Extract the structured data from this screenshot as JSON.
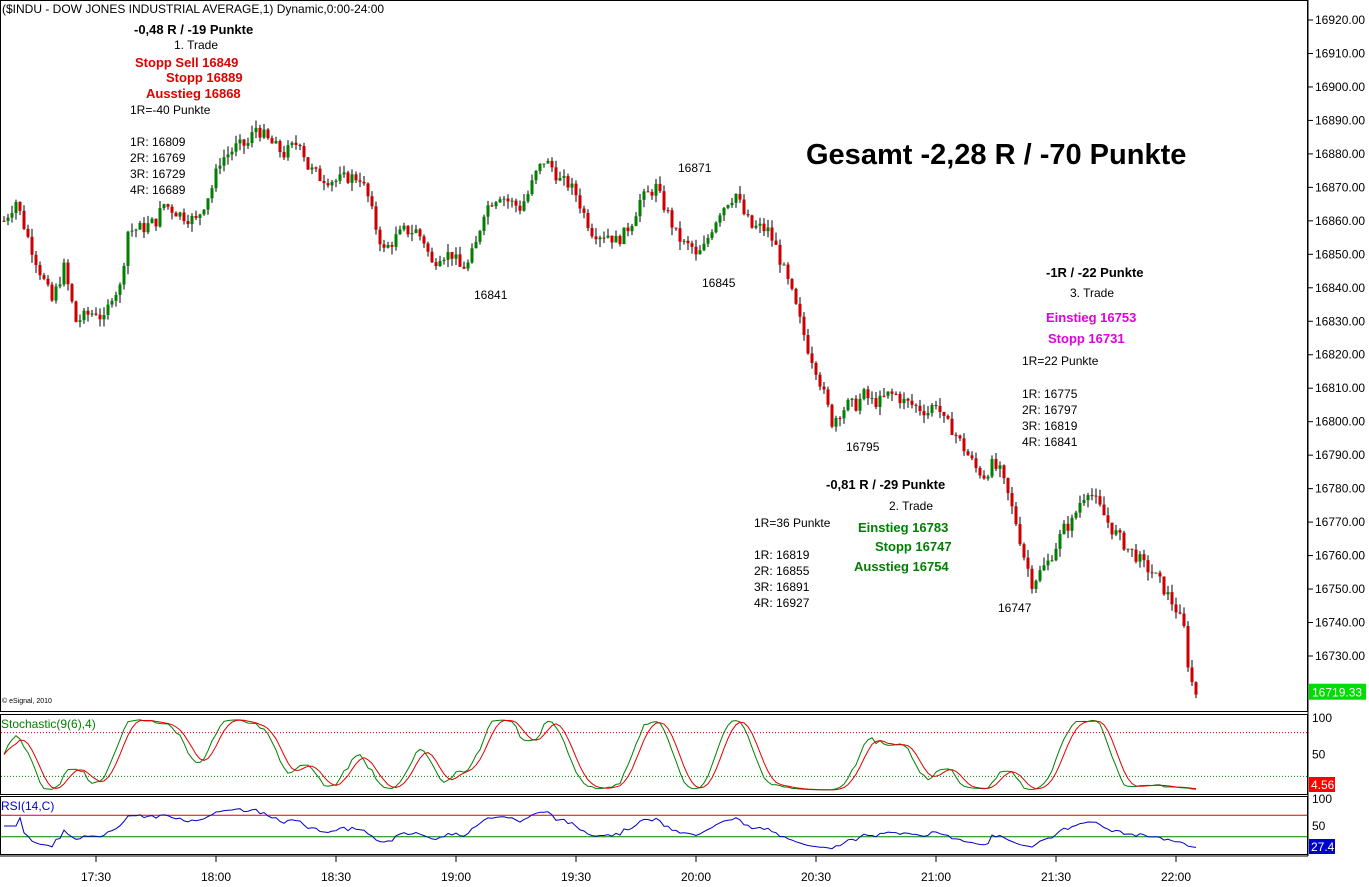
{
  "chart_data": {
    "type": "candlestick",
    "title": "($INDU - DOW JONES INDUSTRIAL AVERAGE,1) Dynamic,0:00-24:00",
    "watermark": "© eSignal, 2010",
    "headline": "Gesamt -2,28 R / -70 Punkte",
    "price_axis": {
      "range": [
        16715,
        16925
      ],
      "ticks": [
        "16920.00",
        "16910.00",
        "16900.00",
        "16890.00",
        "16880.00",
        "16870.00",
        "16860.00",
        "16850.00",
        "16840.00",
        "16830.00",
        "16820.00",
        "16810.00",
        "16800.00",
        "16790.00",
        "16780.00",
        "16770.00",
        "16760.00",
        "16750.00",
        "16740.00",
        "16730.00"
      ],
      "last_price_label": "16719.33",
      "last_price": 16719.33
    },
    "time_axis": {
      "range_minutes": [
        1027,
        1325
      ],
      "ticks": [
        {
          "label": "17:30",
          "minute": 1050
        },
        {
          "label": "18:00",
          "minute": 1080
        },
        {
          "label": "18:30",
          "minute": 1110
        },
        {
          "label": "19:00",
          "minute": 1140
        },
        {
          "label": "19:30",
          "minute": 1170
        },
        {
          "label": "20:00",
          "minute": 1200
        },
        {
          "label": "20:30",
          "minute": 1230
        },
        {
          "label": "21:00",
          "minute": 1260
        },
        {
          "label": "21:30",
          "minute": 1290
        },
        {
          "label": "22:00",
          "minute": 1320
        }
      ]
    },
    "price_path": [
      [
        1027,
        16860
      ],
      [
        1030,
        16866
      ],
      [
        1033,
        16855
      ],
      [
        1036,
        16845
      ],
      [
        1039,
        16836
      ],
      [
        1042,
        16846
      ],
      [
        1045,
        16830
      ],
      [
        1048,
        16832
      ],
      [
        1050,
        16833
      ],
      [
        1052,
        16830
      ],
      [
        1054,
        16838
      ],
      [
        1056,
        16840
      ],
      [
        1058,
        16857
      ],
      [
        1062,
        16858
      ],
      [
        1065,
        16860
      ],
      [
        1067,
        16865
      ],
      [
        1071,
        16862
      ],
      [
        1075,
        16860
      ],
      [
        1079,
        16870
      ],
      [
        1081,
        16878
      ],
      [
        1085,
        16882
      ],
      [
        1088,
        16883
      ],
      [
        1090,
        16888
      ],
      [
        1093,
        16884
      ],
      [
        1097,
        16880
      ],
      [
        1101,
        16884
      ],
      [
        1103,
        16876
      ],
      [
        1106,
        16873
      ],
      [
        1110,
        16872
      ],
      [
        1113,
        16873
      ],
      [
        1116,
        16873
      ],
      [
        1118,
        16867
      ],
      [
        1120,
        16858
      ],
      [
        1122,
        16851
      ],
      [
        1125,
        16855
      ],
      [
        1127,
        16857
      ],
      [
        1130,
        16857
      ],
      [
        1132,
        16854
      ],
      [
        1134,
        16847
      ],
      [
        1136,
        16850
      ],
      [
        1138,
        16850
      ],
      [
        1139,
        16850
      ],
      [
        1141,
        16846
      ],
      [
        1143,
        16847
      ],
      [
        1145,
        16853
      ],
      [
        1147,
        16863
      ],
      [
        1149,
        16866
      ],
      [
        1151,
        16868
      ],
      [
        1153,
        16866
      ],
      [
        1156,
        16864
      ],
      [
        1158,
        16868
      ],
      [
        1160,
        16874
      ],
      [
        1162,
        16878
      ],
      [
        1164,
        16876
      ],
      [
        1166,
        16872
      ],
      [
        1168,
        16871
      ],
      [
        1170,
        16868
      ],
      [
        1172,
        16862
      ],
      [
        1174,
        16857
      ],
      [
        1176,
        16856
      ],
      [
        1178,
        16856
      ],
      [
        1180,
        16854
      ],
      [
        1182,
        16856
      ],
      [
        1184,
        16860
      ],
      [
        1186,
        16866
      ],
      [
        1188,
        16868
      ],
      [
        1190,
        16870
      ],
      [
        1191,
        16867
      ],
      [
        1193,
        16862
      ],
      [
        1195,
        16856
      ],
      [
        1197,
        16853
      ],
      [
        1199,
        16852
      ],
      [
        1200,
        16849
      ],
      [
        1202,
        16852
      ],
      [
        1204,
        16858
      ],
      [
        1206,
        16863
      ],
      [
        1208,
        16866
      ],
      [
        1210,
        16868
      ],
      [
        1212,
        16862
      ],
      [
        1214,
        16858
      ],
      [
        1216,
        16858
      ],
      [
        1218,
        16857
      ],
      [
        1220,
        16852
      ],
      [
        1222,
        16845
      ],
      [
        1224,
        16838
      ],
      [
        1226,
        16830
      ],
      [
        1228,
        16822
      ],
      [
        1230,
        16816
      ],
      [
        1232,
        16808
      ],
      [
        1234,
        16800
      ],
      [
        1236,
        16803
      ],
      [
        1238,
        16805
      ],
      [
        1240,
        16805
      ],
      [
        1242,
        16808
      ],
      [
        1244,
        16806
      ],
      [
        1246,
        16806
      ],
      [
        1248,
        16808
      ],
      [
        1250,
        16808
      ],
      [
        1252,
        16806
      ],
      [
        1254,
        16805
      ],
      [
        1256,
        16804
      ],
      [
        1258,
        16803
      ],
      [
        1260,
        16806
      ],
      [
        1262,
        16800
      ],
      [
        1264,
        16798
      ],
      [
        1266,
        16794
      ],
      [
        1268,
        16790
      ],
      [
        1270,
        16786
      ],
      [
        1272,
        16784
      ],
      [
        1274,
        16787
      ],
      [
        1276,
        16785
      ],
      [
        1278,
        16778
      ],
      [
        1280,
        16770
      ],
      [
        1282,
        16760
      ],
      [
        1284,
        16752
      ],
      [
        1286,
        16755
      ],
      [
        1288,
        16758
      ],
      [
        1290,
        16763
      ],
      [
        1292,
        16768
      ],
      [
        1294,
        16770
      ],
      [
        1296,
        16776
      ],
      [
        1298,
        16780
      ],
      [
        1300,
        16776
      ],
      [
        1302,
        16772
      ],
      [
        1304,
        16768
      ],
      [
        1306,
        16765
      ],
      [
        1308,
        16762
      ],
      [
        1310,
        16760
      ],
      [
        1312,
        16757
      ],
      [
        1314,
        16755
      ],
      [
        1316,
        16752
      ],
      [
        1318,
        16748
      ],
      [
        1320,
        16744
      ],
      [
        1322,
        16738
      ],
      [
        1323,
        16728
      ],
      [
        1324,
        16722
      ],
      [
        1325,
        16719
      ]
    ],
    "annotations": {
      "trade1": {
        "result": "-0,48 R / -19 Punkte",
        "label": "1. Trade",
        "stopp_sell": "Stopp Sell 16849",
        "stopp": "Stopp 16889",
        "ausstieg": "Ausstieg 16868",
        "r_size": "1R=-40 Punkte",
        "targets": [
          "1R: 16809",
          "2R: 16769",
          "3R: 16729",
          "4R: 16689"
        ]
      },
      "trade2": {
        "result": "-0,81 R / -29 Punkte",
        "label": "2. Trade",
        "einstieg": "Einstieg 16783",
        "stopp": "Stopp 16747",
        "ausstieg": "Ausstieg 16754",
        "r_size": "1R=36 Punkte",
        "targets": [
          "1R: 16819",
          "2R: 16855",
          "3R: 16891",
          "4R: 16927"
        ]
      },
      "trade3": {
        "result": "-1R / -22 Punkte",
        "label": "3. Trade",
        "einstieg": "Einstieg 16753",
        "stopp": "Stopp 16731",
        "r_size": "1R=22 Punkte",
        "targets": [
          "1R: 16775",
          "2R: 16797",
          "3R: 16819",
          "4R: 16841"
        ]
      },
      "swing_labels": [
        {
          "text": "16871",
          "minute": 1199,
          "price": 16877
        },
        {
          "text": "16841",
          "minute": 1155,
          "price": 16835
        },
        {
          "text": "16845",
          "minute": 1199,
          "price": 16836
        },
        {
          "text": "16795",
          "minute": 1235,
          "price": 16786
        },
        {
          "text": "16747",
          "minute": 1284,
          "price": 16738
        }
      ]
    },
    "stochastic": {
      "label": "Stochastic(9(6),4)",
      "value_label": "4.56",
      "ticks": [
        "100",
        "50"
      ],
      "upper_level": 80,
      "lower_level": 20,
      "colors": {
        "k": "#008000",
        "d": "#e00000"
      }
    },
    "rsi": {
      "label": "RSI(14,C)",
      "value_label": "27.4",
      "ticks": [
        "100",
        "50"
      ],
      "upper_level": 70,
      "lower_level": 30,
      "color": "#0000cc"
    },
    "colors": {
      "up": "#008000",
      "down": "#cc0000",
      "last_price_bg": "#00dd00",
      "stoch_value_bg": "#ff0000",
      "rsi_value_bg": "#0000cc",
      "trade1": "#e00000",
      "trade2": "#008000",
      "trade3": "#e000e0"
    }
  }
}
